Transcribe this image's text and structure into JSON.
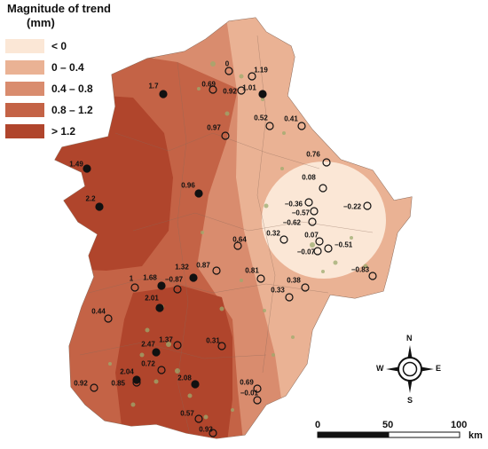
{
  "legend": {
    "title_line1": "Magnitude of trend",
    "title_line2": "(mm)",
    "classes": [
      {
        "label": "< 0",
        "color": "#fbe7d6"
      },
      {
        "label": "0 – 0.4",
        "color": "#eab294"
      },
      {
        "label": "0.4 – 0.8",
        "color": "#d98c6e"
      },
      {
        "label": "0.8 – 1.2",
        "color": "#c46346"
      },
      {
        "label": "> 1.2",
        "color": "#b0452c"
      }
    ]
  },
  "stations": [
    {
      "label": "0",
      "filled": false
    },
    {
      "label": "1.19",
      "filled": false
    },
    {
      "label": "0.69",
      "filled": false
    },
    {
      "label": "0.92",
      "filled": false
    },
    {
      "label": "1.01",
      "filled": true
    },
    {
      "label": "1.7",
      "filled": true
    },
    {
      "label": "0.52",
      "filled": false
    },
    {
      "label": "0.41",
      "filled": false
    },
    {
      "label": "0.97",
      "filled": false
    },
    {
      "label": "0.76",
      "filled": false
    },
    {
      "label": "1.49",
      "filled": true
    },
    {
      "label": "0.08",
      "filled": false
    },
    {
      "label": "0.96",
      "filled": true
    },
    {
      "label": "2.2",
      "filled": true
    },
    {
      "label": "−0.36",
      "filled": false
    },
    {
      "label": "−0.22",
      "filled": false
    },
    {
      "label": "−0.57",
      "filled": false
    },
    {
      "label": "−0.62",
      "filled": false
    },
    {
      "label": "0.32",
      "filled": false
    },
    {
      "label": "0.07",
      "filled": false
    },
    {
      "label": "0.64",
      "filled": false
    },
    {
      "label": "−0.51",
      "filled": false
    },
    {
      "label": "−0.07",
      "filled": false
    },
    {
      "label": "−0.83",
      "filled": false
    },
    {
      "label": "1.32",
      "filled": true
    },
    {
      "label": "0.87",
      "filled": false
    },
    {
      "label": "0.81",
      "filled": false
    },
    {
      "label": "1",
      "filled": false
    },
    {
      "label": "1.68",
      "filled": true
    },
    {
      "label": "−0.87",
      "filled": false
    },
    {
      "label": "0.38",
      "filled": false
    },
    {
      "label": "0.33",
      "filled": false
    },
    {
      "label": "2.01",
      "filled": true
    },
    {
      "label": "0.44",
      "filled": false
    },
    {
      "label": "2.47",
      "filled": true
    },
    {
      "label": "1.37",
      "filled": false
    },
    {
      "label": "0.31",
      "filled": false
    },
    {
      "label": "0.72",
      "filled": false
    },
    {
      "label": "2.04",
      "filled": true
    },
    {
      "label": "0.85",
      "filled": false
    },
    {
      "label": "0.92",
      "filled": false
    },
    {
      "label": "2.08",
      "filled": true
    },
    {
      "label": "0.69",
      "filled": false
    },
    {
      "label": "−0.01",
      "filled": false
    },
    {
      "label": "0.57",
      "filled": false
    },
    {
      "label": "0.93",
      "filled": false
    }
  ],
  "compass": {
    "n": "N",
    "s": "S",
    "e": "E",
    "w": "W"
  },
  "scale": {
    "tick_labels": [
      "0",
      "50",
      "100"
    ],
    "unit": "km"
  }
}
